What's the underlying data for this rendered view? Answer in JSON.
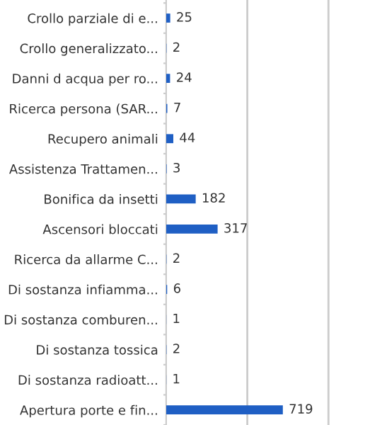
{
  "chart_data": {
    "type": "bar",
    "orientation": "horizontal",
    "categories": [
      "Crollo parziale di e...",
      "Crollo generalizzato...",
      "Danni d acqua per ro...",
      "Ricerca persona (SAR...",
      "Recupero animali",
      "Assistenza Trattamen...",
      "Bonifica da insetti",
      "Ascensori bloccati",
      "Ricerca da allarme C...",
      "Di sostanza infiamma...",
      "Di sostanza comburen...",
      "Di sostanza tossica",
      "Di sostanza radioatt...",
      "Apertura porte e fin..."
    ],
    "values": [
      25,
      2,
      24,
      7,
      44,
      3,
      182,
      317,
      2,
      6,
      1,
      2,
      1,
      719
    ],
    "color": "#1f5fc4",
    "data_labels": true,
    "ref_lines": [
      {
        "axis": "x",
        "value": 500,
        "color": "#cccccc"
      },
      {
        "axis": "x",
        "value": 1000,
        "color": "#cccccc"
      }
    ],
    "tick_labels": "y",
    "legend": false
  }
}
